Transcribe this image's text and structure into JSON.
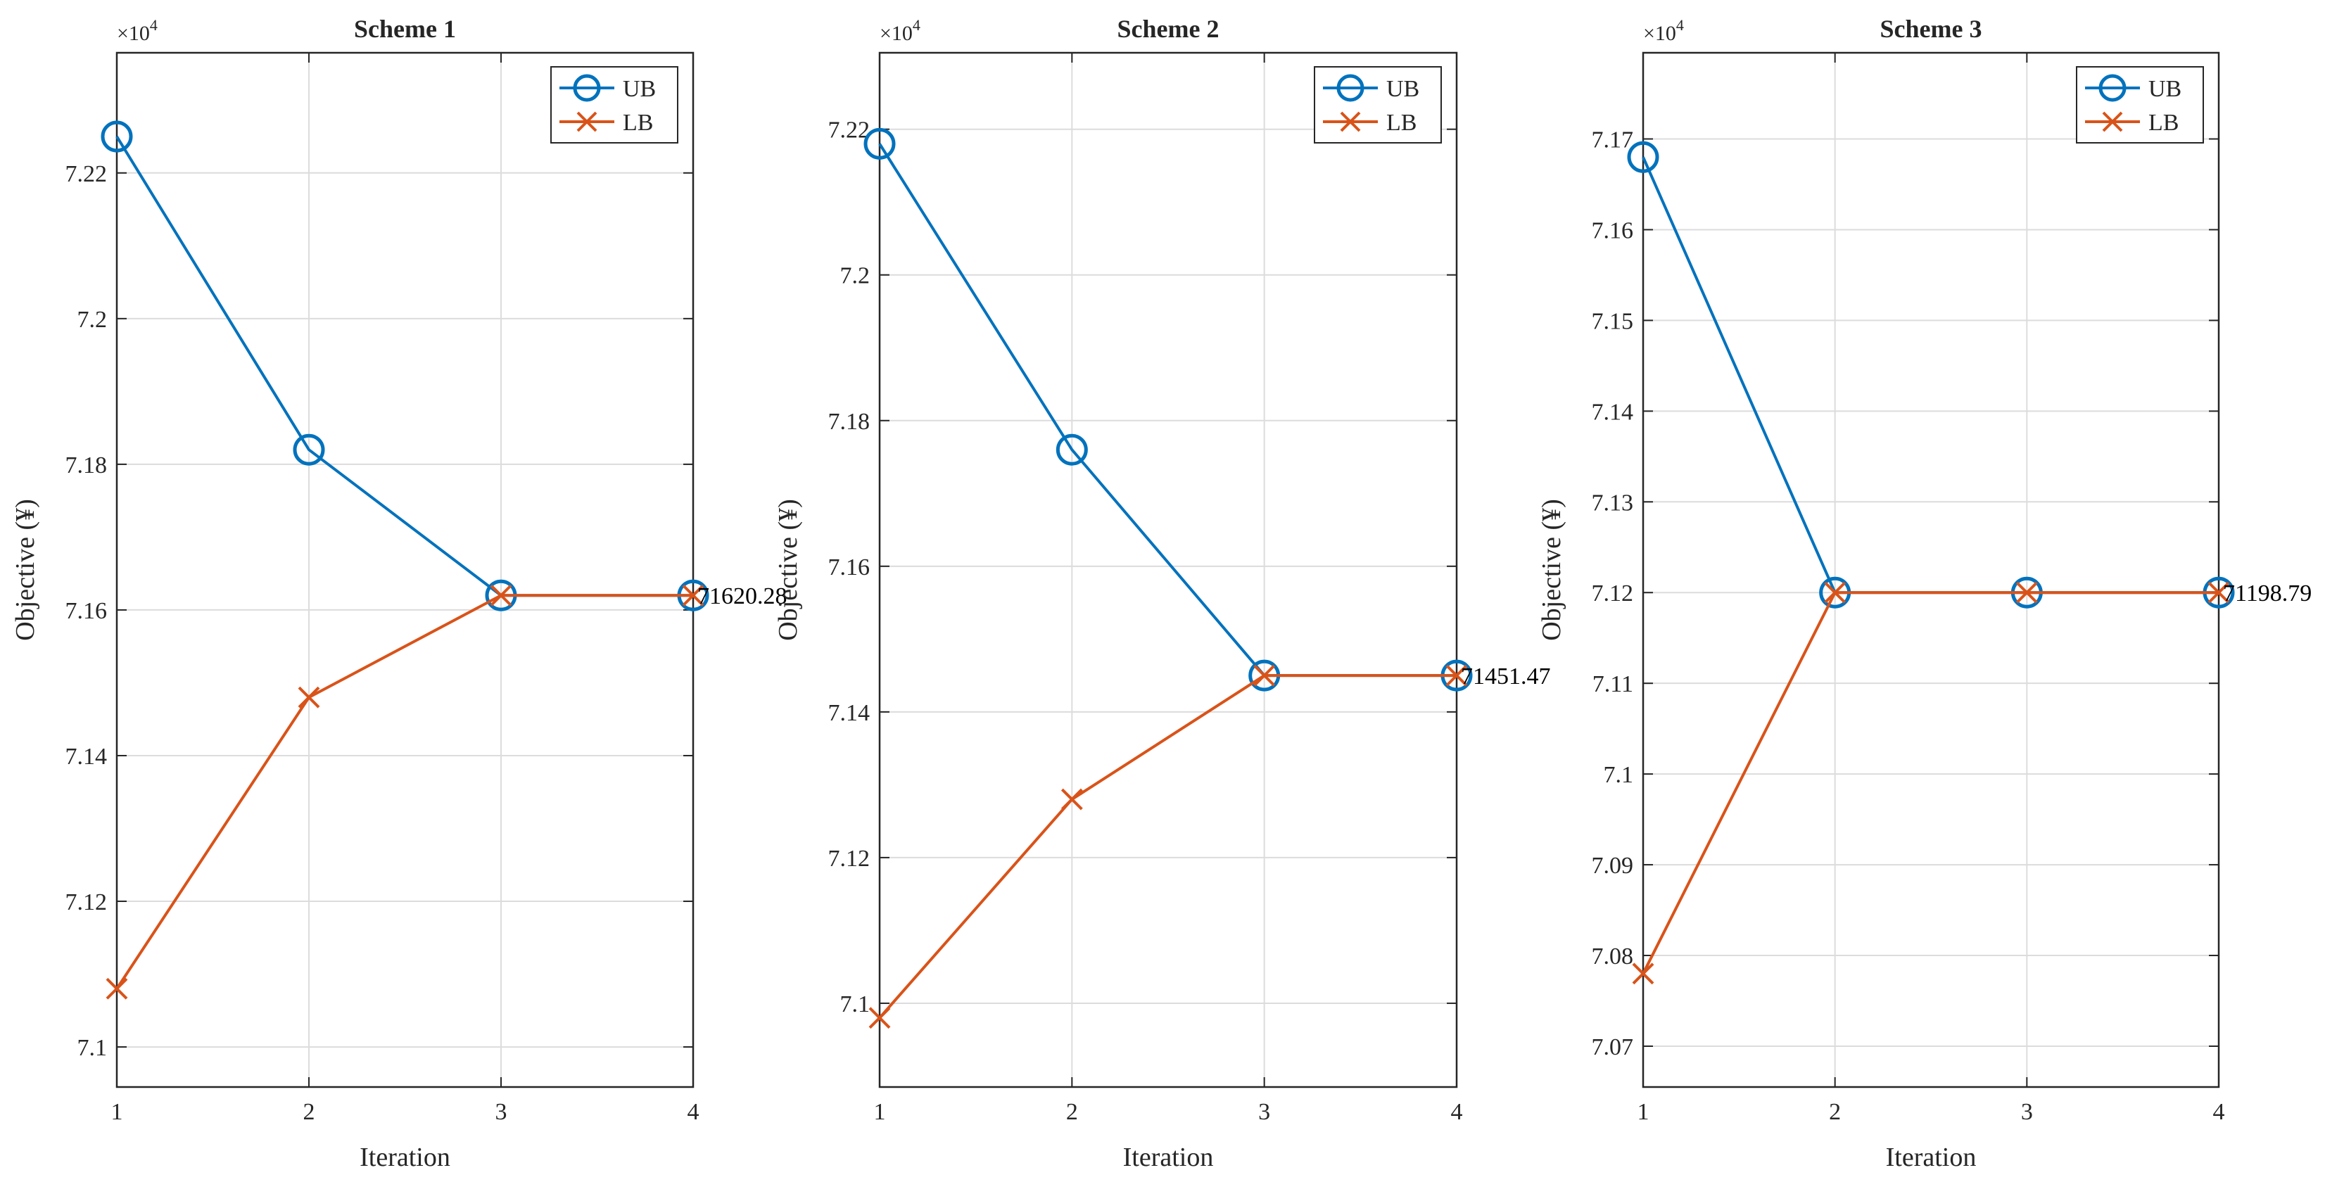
{
  "figure": {
    "background": "#ffffff",
    "ub_color": "#0072BD",
    "lb_color": "#D95319",
    "grid_color": "#dcdcdc",
    "axes_color": "#262626"
  },
  "chart_data": [
    {
      "type": "line",
      "title": "Scheme 1",
      "xlabel": "Iteration",
      "ylabel": "Objective (¥)",
      "exponent_label": "×10",
      "exponent_power": "4",
      "x": [
        1,
        2,
        3,
        4
      ],
      "xlim": [
        1,
        4
      ],
      "ylim": [
        7.0945,
        7.2365
      ],
      "yticks": [
        7.1,
        7.12,
        7.14,
        7.16,
        7.18,
        7.2,
        7.22
      ],
      "ytick_labels": [
        "7.1",
        "7.12",
        "7.14",
        "7.16",
        "7.18",
        "7.2",
        "7.22"
      ],
      "xtick_labels": [
        "1",
        "2",
        "3",
        "4"
      ],
      "grid": true,
      "legend_position": "top-right",
      "series": [
        {
          "name": "UB",
          "marker": "circle",
          "values": [
            7.225,
            7.182,
            7.162,
            7.162
          ]
        },
        {
          "name": "LB",
          "marker": "x",
          "values": [
            7.108,
            7.148,
            7.162,
            7.162
          ]
        }
      ],
      "annotation": "71620.28"
    },
    {
      "type": "line",
      "title": "Scheme 2",
      "xlabel": "Iteration",
      "ylabel": "Objective (¥)",
      "exponent_label": "×10",
      "exponent_power": "4",
      "x": [
        1,
        2,
        3,
        4
      ],
      "xlim": [
        1,
        4
      ],
      "ylim": [
        7.0885,
        7.2305
      ],
      "yticks": [
        7.1,
        7.12,
        7.14,
        7.16,
        7.18,
        7.2,
        7.22
      ],
      "ytick_labels": [
        "7.1",
        "7.12",
        "7.14",
        "7.16",
        "7.18",
        "7.2",
        "7.22"
      ],
      "xtick_labels": [
        "1",
        "2",
        "3",
        "4"
      ],
      "grid": true,
      "legend_position": "top-right",
      "series": [
        {
          "name": "UB",
          "marker": "circle",
          "values": [
            7.218,
            7.176,
            7.145,
            7.145
          ]
        },
        {
          "name": "LB",
          "marker": "x",
          "values": [
            7.098,
            7.128,
            7.145,
            7.145
          ]
        }
      ],
      "annotation": "71451.47"
    },
    {
      "type": "line",
      "title": "Scheme 3",
      "xlabel": "Iteration",
      "ylabel": "Objective (¥)",
      "exponent_label": "×10",
      "exponent_power": "4",
      "x": [
        1,
        2,
        3,
        4
      ],
      "xlim": [
        1,
        4
      ],
      "ylim": [
        7.0655,
        7.1795
      ],
      "yticks": [
        7.07,
        7.08,
        7.09,
        7.1,
        7.11,
        7.12,
        7.13,
        7.14,
        7.15,
        7.16,
        7.17
      ],
      "ytick_labels": [
        "7.07",
        "7.08",
        "7.09",
        "7.1",
        "7.11",
        "7.12",
        "7.13",
        "7.14",
        "7.15",
        "7.16",
        "7.17"
      ],
      "xtick_labels": [
        "1",
        "2",
        "3",
        "4"
      ],
      "grid": true,
      "legend_position": "top-right",
      "series": [
        {
          "name": "UB",
          "marker": "circle",
          "values": [
            7.168,
            7.12,
            7.12,
            7.12
          ]
        },
        {
          "name": "LB",
          "marker": "x",
          "values": [
            7.078,
            7.12,
            7.12,
            7.12
          ]
        }
      ],
      "annotation": "71198.79"
    }
  ]
}
